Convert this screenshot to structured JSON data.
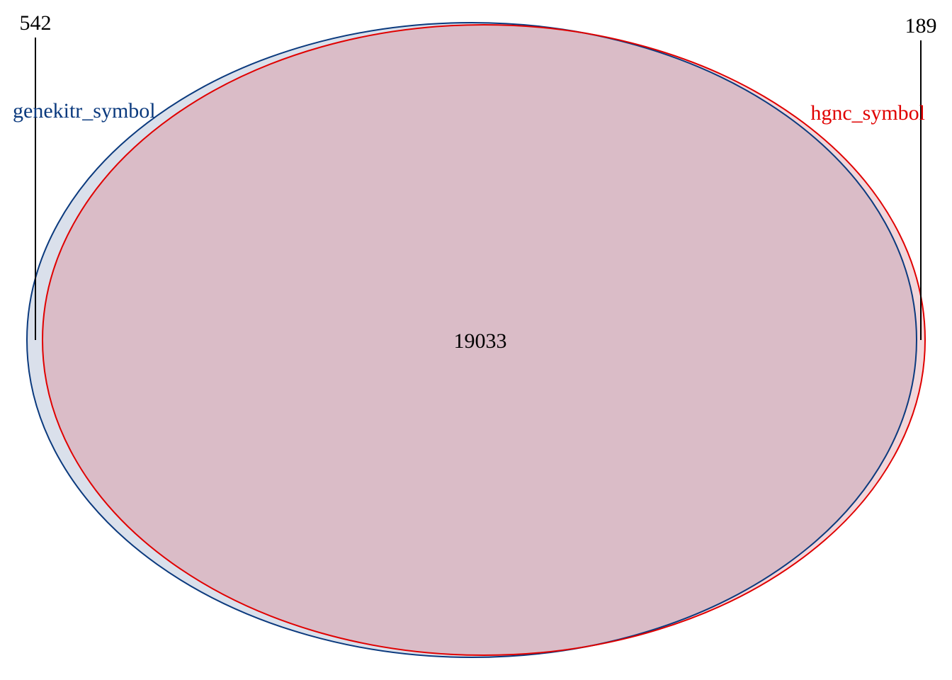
{
  "chart_data": {
    "type": "venn",
    "sets": [
      {
        "name": "genekitr_symbol",
        "only_count": "542",
        "color": "#0b3a7e",
        "fill": "#dae0eb"
      },
      {
        "name": "hgnc_symbol",
        "only_count": "189",
        "color": "#e00000",
        "fill": "#f2d6da"
      }
    ],
    "intersection": {
      "sets": [
        "genekitr_symbol",
        "hgnc_symbol"
      ],
      "count": "19033",
      "fill": "#dabcc7"
    }
  }
}
